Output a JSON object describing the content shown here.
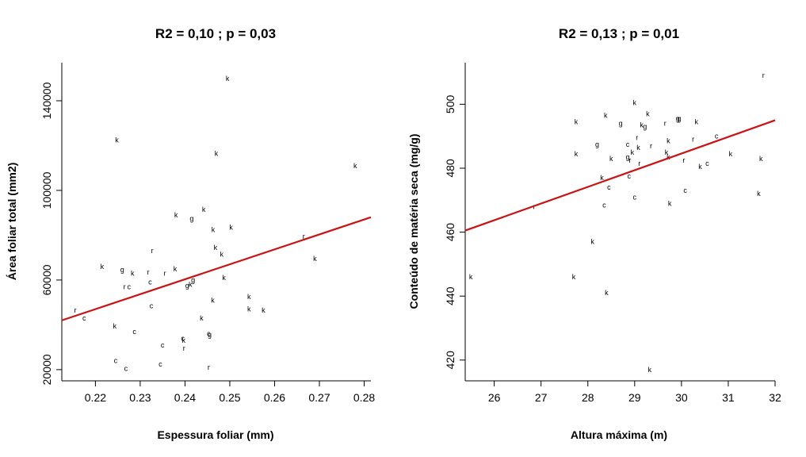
{
  "chart_data": [
    {
      "type": "scatter",
      "title": "R2 = 0,10 ; p = 0,03",
      "xlabel": "Espessura foliar (mm)",
      "ylabel": "Área foliar total (mm2)",
      "xlim": [
        0.2125,
        0.2815
      ],
      "ylim": [
        15000,
        157000
      ],
      "xticks": [
        0.22,
        0.23,
        0.24,
        0.25,
        0.26,
        0.27,
        0.28
      ],
      "xtick_labels": [
        "0.22",
        "0.23",
        "0.24",
        "0.25",
        "0.26",
        "0.27",
        "0.28"
      ],
      "yticks": [
        20000,
        60000,
        100000,
        140000
      ],
      "ytick_labels": [
        "20000",
        "60000",
        "100000",
        "140000"
      ],
      "regression": {
        "x": [
          0.2125,
          0.2815
        ],
        "y": [
          42000,
          88000
        ],
        "color": "#cc1111"
      },
      "points": [
        {
          "x": 0.2155,
          "y": 46500,
          "label": "r"
        },
        {
          "x": 0.2175,
          "y": 43000,
          "label": "c"
        },
        {
          "x": 0.2215,
          "y": 66000,
          "label": "k"
        },
        {
          "x": 0.2243,
          "y": 39500,
          "label": "k"
        },
        {
          "x": 0.2245,
          "y": 24000,
          "label": "c"
        },
        {
          "x": 0.2248,
          "y": 122500,
          "label": "k"
        },
        {
          "x": 0.226,
          "y": 64500,
          "label": "g"
        },
        {
          "x": 0.2265,
          "y": 57000,
          "label": "r"
        },
        {
          "x": 0.2268,
          "y": 20500,
          "label": "c"
        },
        {
          "x": 0.2275,
          "y": 57000,
          "label": "c"
        },
        {
          "x": 0.2283,
          "y": 63000,
          "label": "k"
        },
        {
          "x": 0.2287,
          "y": 37000,
          "label": "c"
        },
        {
          "x": 0.2318,
          "y": 63500,
          "label": "r"
        },
        {
          "x": 0.2322,
          "y": 59000,
          "label": "c"
        },
        {
          "x": 0.2325,
          "y": 48500,
          "label": "c"
        },
        {
          "x": 0.2327,
          "y": 73000,
          "label": "r"
        },
        {
          "x": 0.2345,
          "y": 22500,
          "label": "c"
        },
        {
          "x": 0.235,
          "y": 31000,
          "label": "c"
        },
        {
          "x": 0.2355,
          "y": 63000,
          "label": "r"
        },
        {
          "x": 0.2378,
          "y": 65000,
          "label": "k"
        },
        {
          "x": 0.238,
          "y": 89000,
          "label": "k"
        },
        {
          "x": 0.2395,
          "y": 34000,
          "label": "c"
        },
        {
          "x": 0.2397,
          "y": 33000,
          "label": "k"
        },
        {
          "x": 0.2398,
          "y": 29500,
          "label": "r"
        },
        {
          "x": 0.2405,
          "y": 57500,
          "label": "g"
        },
        {
          "x": 0.2412,
          "y": 58000,
          "label": "k"
        },
        {
          "x": 0.2418,
          "y": 60000,
          "label": "g"
        },
        {
          "x": 0.2415,
          "y": 87500,
          "label": "g"
        },
        {
          "x": 0.2437,
          "y": 43000,
          "label": "k"
        },
        {
          "x": 0.2442,
          "y": 91500,
          "label": "k"
        },
        {
          "x": 0.2453,
          "y": 36000,
          "label": "c"
        },
        {
          "x": 0.2455,
          "y": 35500,
          "label": "g"
        },
        {
          "x": 0.2453,
          "y": 21000,
          "label": "r"
        },
        {
          "x": 0.2462,
          "y": 51000,
          "label": "k"
        },
        {
          "x": 0.2463,
          "y": 82500,
          "label": "k"
        },
        {
          "x": 0.2468,
          "y": 74500,
          "label": "k"
        },
        {
          "x": 0.247,
          "y": 116500,
          "label": "k"
        },
        {
          "x": 0.2482,
          "y": 71500,
          "label": "k"
        },
        {
          "x": 0.2487,
          "y": 61000,
          "label": "k"
        },
        {
          "x": 0.2495,
          "y": 150000,
          "label": "k"
        },
        {
          "x": 0.2503,
          "y": 83500,
          "label": "k"
        },
        {
          "x": 0.2543,
          "y": 52500,
          "label": "k"
        },
        {
          "x": 0.2543,
          "y": 47000,
          "label": "k"
        },
        {
          "x": 0.2575,
          "y": 46500,
          "label": "k"
        },
        {
          "x": 0.2665,
          "y": 79500,
          "label": "r"
        },
        {
          "x": 0.269,
          "y": 69500,
          "label": "k"
        },
        {
          "x": 0.278,
          "y": 111000,
          "label": "k"
        }
      ]
    },
    {
      "type": "scatter",
      "title": "R2 = 0,13 ; p = 0,01",
      "xlabel": "Altura máxima (m)",
      "ylabel": "Conteúdo de matéria seca (mg/g)",
      "xlim": [
        25.38,
        32.0
      ],
      "ylim": [
        413.5,
        513
      ],
      "xticks": [
        26,
        27,
        28,
        29,
        30,
        31,
        32
      ],
      "xtick_labels": [
        "26",
        "27",
        "28",
        "29",
        "30",
        "31",
        "32"
      ],
      "yticks": [
        420,
        440,
        460,
        480,
        500
      ],
      "ytick_labels": [
        "420",
        "440",
        "460",
        "480",
        "500"
      ],
      "regression": {
        "x": [
          25.38,
          32.0
        ],
        "y": [
          460.5,
          495
        ],
        "color": "#cc1111"
      },
      "points": [
        {
          "x": 25.5,
          "y": 446,
          "label": "k"
        },
        {
          "x": 26.85,
          "y": 468,
          "label": "r"
        },
        {
          "x": 27.7,
          "y": 446,
          "label": "k"
        },
        {
          "x": 27.75,
          "y": 494.5,
          "label": "k"
        },
        {
          "x": 27.75,
          "y": 484.5,
          "label": "k"
        },
        {
          "x": 28.1,
          "y": 457,
          "label": "k"
        },
        {
          "x": 28.2,
          "y": 487.5,
          "label": "g"
        },
        {
          "x": 28.3,
          "y": 477,
          "label": "k"
        },
        {
          "x": 28.35,
          "y": 468.5,
          "label": "c"
        },
        {
          "x": 28.38,
          "y": 496.5,
          "label": "k"
        },
        {
          "x": 28.4,
          "y": 441,
          "label": "k"
        },
        {
          "x": 28.45,
          "y": 474,
          "label": "c"
        },
        {
          "x": 28.5,
          "y": 483,
          "label": "k"
        },
        {
          "x": 28.7,
          "y": 494,
          "label": "g"
        },
        {
          "x": 28.85,
          "y": 487.5,
          "label": "c"
        },
        {
          "x": 28.85,
          "y": 483.5,
          "label": "g"
        },
        {
          "x": 28.88,
          "y": 477.5,
          "label": "c"
        },
        {
          "x": 28.9,
          "y": 482.5,
          "label": "r"
        },
        {
          "x": 28.95,
          "y": 485,
          "label": "k"
        },
        {
          "x": 29.0,
          "y": 471,
          "label": "c"
        },
        {
          "x": 29.0,
          "y": 500.5,
          "label": "k"
        },
        {
          "x": 29.05,
          "y": 489.5,
          "label": "r"
        },
        {
          "x": 29.08,
          "y": 486.5,
          "label": "k"
        },
        {
          "x": 29.1,
          "y": 481.5,
          "label": "r"
        },
        {
          "x": 29.15,
          "y": 493.5,
          "label": "k"
        },
        {
          "x": 29.22,
          "y": 493,
          "label": "g"
        },
        {
          "x": 29.28,
          "y": 497,
          "label": "k"
        },
        {
          "x": 29.32,
          "y": 417,
          "label": "k"
        },
        {
          "x": 29.35,
          "y": 487,
          "label": "r"
        },
        {
          "x": 29.65,
          "y": 494,
          "label": "r"
        },
        {
          "x": 29.68,
          "y": 485,
          "label": "k"
        },
        {
          "x": 29.72,
          "y": 488.5,
          "label": "k"
        },
        {
          "x": 29.72,
          "y": 483.5,
          "label": "k"
        },
        {
          "x": 29.75,
          "y": 469,
          "label": "k"
        },
        {
          "x": 29.92,
          "y": 495.5,
          "label": "g"
        },
        {
          "x": 29.95,
          "y": 495.5,
          "label": "g"
        },
        {
          "x": 30.05,
          "y": 482.5,
          "label": "r"
        },
        {
          "x": 30.08,
          "y": 473,
          "label": "c"
        },
        {
          "x": 30.25,
          "y": 489,
          "label": "r"
        },
        {
          "x": 30.32,
          "y": 494.5,
          "label": "k"
        },
        {
          "x": 30.4,
          "y": 480.5,
          "label": "k"
        },
        {
          "x": 30.55,
          "y": 481.5,
          "label": "c"
        },
        {
          "x": 30.75,
          "y": 490,
          "label": "c"
        },
        {
          "x": 31.05,
          "y": 484.5,
          "label": "k"
        },
        {
          "x": 31.65,
          "y": 472,
          "label": "k"
        },
        {
          "x": 31.7,
          "y": 483,
          "label": "k"
        },
        {
          "x": 31.75,
          "y": 509,
          "label": "r"
        }
      ]
    }
  ]
}
